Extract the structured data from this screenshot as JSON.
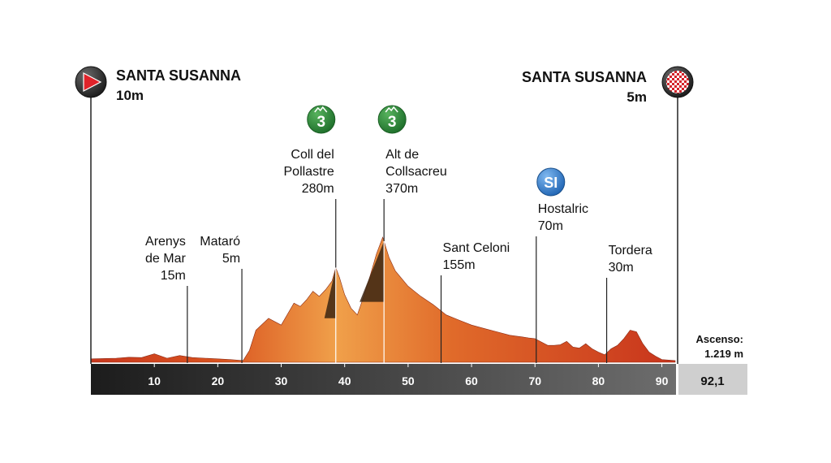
{
  "start": {
    "name": "SANTA SUSANNA",
    "altitude": "10m",
    "icon": "start-flag-icon"
  },
  "finish": {
    "name": "SANTA SUSANNA",
    "altitude": "5m",
    "icon": "checkered-finish-icon"
  },
  "ascent": {
    "label": "Ascenso:",
    "value": "1.219 m"
  },
  "total_distance": "92,1",
  "colors": {
    "axis_bar": "#3b3b3b",
    "distance_box": "#cfcfcf",
    "profile_dark": "#c8381e",
    "profile_light": "#f0a04a",
    "climb": "#2f8a3a",
    "sprint": "#2a78c8"
  },
  "chart_data": {
    "type": "area",
    "x_unit": "km",
    "xlim": [
      0,
      92.1
    ],
    "ylim": [
      0,
      400
    ],
    "x_ticks": [
      10,
      20,
      30,
      40,
      50,
      60,
      70,
      80,
      90
    ],
    "profile": {
      "x": [
        0,
        4,
        6,
        8,
        10,
        12,
        14,
        16,
        18,
        20,
        22,
        24,
        25,
        26,
        28,
        30,
        32,
        33,
        34,
        35,
        36,
        37,
        38,
        38.6,
        39.2,
        40,
        41,
        42,
        43,
        44,
        45,
        46,
        47,
        48,
        50,
        52,
        54,
        55,
        56,
        58,
        60,
        62,
        64,
        66,
        68,
        69,
        70,
        71,
        72,
        73,
        74,
        75,
        76,
        77,
        78,
        79,
        80,
        81,
        82,
        83,
        84,
        85,
        86,
        87,
        88,
        89,
        90,
        92.1
      ],
      "y": [
        10,
        12,
        15,
        14,
        25,
        12,
        20,
        14,
        12,
        10,
        8,
        5,
        35,
        95,
        130,
        110,
        175,
        165,
        185,
        210,
        195,
        215,
        240,
        280,
        250,
        200,
        160,
        140,
        195,
        255,
        320,
        370,
        310,
        270,
        225,
        195,
        170,
        155,
        140,
        125,
        110,
        100,
        90,
        80,
        75,
        72,
        70,
        60,
        50,
        50,
        52,
        62,
        45,
        42,
        55,
        40,
        30,
        22,
        40,
        50,
        70,
        95,
        90,
        55,
        30,
        18,
        8,
        5
      ]
    },
    "waypoints": [
      {
        "name_lines": [
          "Arenys",
          "de Mar"
        ],
        "altitude": "15m",
        "km": 15.2,
        "type": "place"
      },
      {
        "name_lines": [
          "Mataró"
        ],
        "altitude": "5m",
        "km": 23.8,
        "type": "place"
      },
      {
        "name_lines": [
          "Coll del",
          "Pollastre"
        ],
        "altitude": "280m",
        "km": 38.6,
        "type": "climb",
        "category": "3"
      },
      {
        "name_lines": [
          "Alt de",
          "Collsacreu"
        ],
        "altitude": "370m",
        "km": 46.2,
        "type": "climb",
        "category": "3"
      },
      {
        "name_lines": [
          "Sant Celoni"
        ],
        "altitude": "155m",
        "km": 55.2,
        "type": "place"
      },
      {
        "name_lines": [
          "Hostalric"
        ],
        "altitude": "70m",
        "km": 70.2,
        "type": "sprint",
        "badge": "SI"
      },
      {
        "name_lines": [
          "Tordera"
        ],
        "altitude": "30m",
        "km": 81.3,
        "type": "place"
      }
    ]
  }
}
